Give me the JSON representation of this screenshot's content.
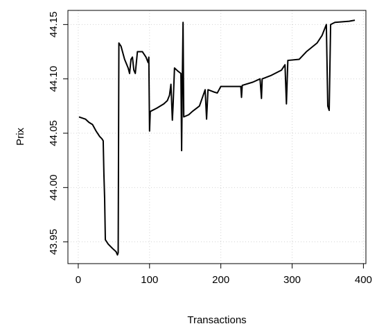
{
  "chart_data": {
    "type": "line",
    "xlabel": "Transactions",
    "ylabel": "Prix",
    "xlim": [
      -14.5,
      403.5
    ],
    "ylim": [
      43.93,
      44.163
    ],
    "xticks": [
      0,
      100,
      200,
      300,
      400
    ],
    "yticks": [
      {
        "value": 43.95,
        "label": "43.95"
      },
      {
        "value": 44.0,
        "label": "44.00"
      },
      {
        "value": 44.05,
        "label": "44.05"
      },
      {
        "value": 44.1,
        "label": "44.10"
      },
      {
        "value": 44.15,
        "label": "44.15"
      }
    ],
    "grid": true,
    "series": [
      {
        "color": "#000000",
        "x": [
          1,
          10,
          15,
          20,
          25,
          30,
          33,
          35,
          36,
          37,
          38,
          42,
          48,
          53,
          55,
          56,
          57,
          60,
          65,
          70,
          72,
          74,
          76,
          78,
          80,
          83,
          90,
          95,
          98,
          99,
          100,
          101,
          110,
          120,
          125,
          128,
          130,
          132,
          133,
          135,
          140,
          144,
          145,
          146,
          147,
          148,
          155,
          160,
          170,
          178,
          180,
          182,
          190,
          195,
          200,
          228,
          229,
          230,
          245,
          255,
          257,
          258,
          270,
          285,
          290,
          292,
          294,
          310,
          320,
          335,
          342,
          348,
          350,
          352,
          354,
          360,
          380,
          388
        ],
        "values": [
          44.065,
          44.063,
          44.06,
          44.058,
          44.052,
          44.047,
          44.045,
          44.043,
          44.012,
          43.99,
          43.952,
          43.948,
          43.944,
          43.941,
          43.938,
          43.94,
          44.133,
          44.13,
          44.118,
          44.11,
          44.105,
          44.118,
          44.12,
          44.108,
          44.105,
          44.125,
          44.125,
          44.12,
          44.115,
          44.12,
          44.052,
          44.07,
          44.073,
          44.077,
          44.08,
          44.085,
          44.095,
          44.062,
          44.075,
          44.11,
          44.107,
          44.105,
          44.034,
          44.1,
          44.152,
          44.065,
          44.067,
          44.07,
          44.075,
          44.09,
          44.063,
          44.09,
          44.088,
          44.087,
          44.093,
          44.093,
          44.083,
          44.094,
          44.097,
          44.1,
          44.082,
          44.1,
          44.103,
          44.108,
          44.113,
          44.077,
          44.117,
          44.118,
          44.125,
          44.133,
          44.14,
          44.15,
          44.075,
          44.071,
          44.15,
          44.152,
          44.153,
          44.154
        ]
      }
    ]
  }
}
